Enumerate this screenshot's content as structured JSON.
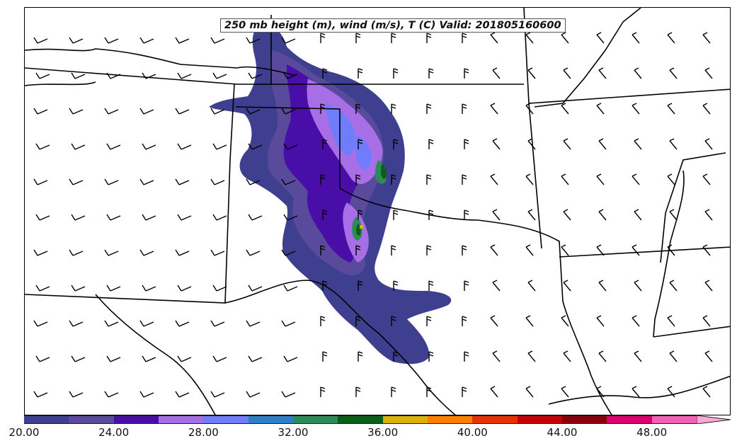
{
  "title": "250 mb height (m), wind (m/s), T (C) Valid: 201805160600",
  "colorbar": {
    "ticks": [
      "20.00",
      "24.00",
      "28.00",
      "32.00",
      "36.00",
      "40.00",
      "44.00",
      "48.00"
    ],
    "min": 20,
    "step": 2,
    "colors": [
      "#3f3f8f",
      "#5a4a9c",
      "#4a0ea8",
      "#a86ee6",
      "#6f7dfc",
      "#2f7fc8",
      "#2e8b57",
      "#0b5e18",
      "#d8b10a",
      "#ff8000",
      "#e63200",
      "#c8000a",
      "#8b0008",
      "#dc006e",
      "#f062b4"
    ],
    "extend_color": "#f9a8d8"
  },
  "map": {
    "region": "South-Central United States (Oklahoma, Kansas, Texas, Arkansas)",
    "wind_barbs": "black, regularly spaced grid"
  }
}
